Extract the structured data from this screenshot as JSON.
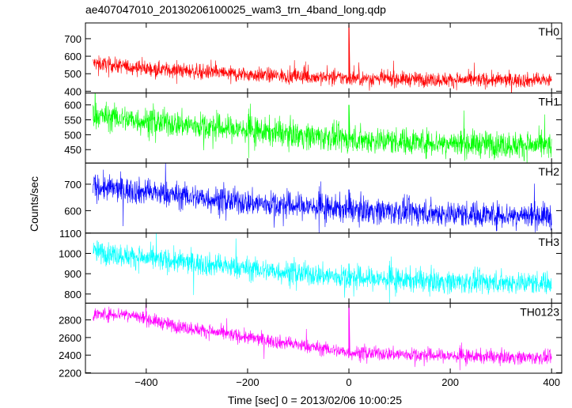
{
  "chart_data": {
    "type": "line",
    "title": "ae407047010_20130206100025_wam3_trn_4band_long.qdp",
    "xlabel": "Time [sec] 0 = 2013/02/06 10:00:25",
    "ylabel": "Counts/sec",
    "xlim": [
      -520,
      420
    ],
    "x_ticks": [
      -400,
      -200,
      0,
      200,
      400
    ],
    "x_tick_labels": [
      "−400",
      "−200",
      "0",
      "200",
      "400"
    ],
    "x_sample_range": [
      -505,
      400
    ],
    "grid": false,
    "panels": [
      {
        "label": "TH0",
        "color": "#ff0000",
        "ylim": [
          390,
          790
        ],
        "y_ticks": [
          400,
          500,
          600,
          700
        ],
        "trend": [
          [
            -505,
            560
          ],
          [
            -400,
            530
          ],
          [
            -200,
            495
          ],
          [
            0,
            475
          ],
          [
            200,
            465
          ],
          [
            400,
            462
          ]
        ],
        "noise": 30,
        "spike": {
          "x": 0,
          "peak": 780
        }
      },
      {
        "label": "TH1",
        "color": "#00ff00",
        "ylim": [
          405,
          640
        ],
        "y_ticks": [
          450,
          500,
          550,
          600
        ],
        "trend": [
          [
            -505,
            565
          ],
          [
            -400,
            545
          ],
          [
            -200,
            515
          ],
          [
            0,
            485
          ],
          [
            200,
            472
          ],
          [
            400,
            462
          ]
        ],
        "noise": 32,
        "spike": {
          "x": 0,
          "peak": 600
        }
      },
      {
        "label": "TH2",
        "color": "#0000ff",
        "ylim": [
          515,
          780
        ],
        "y_ticks": [
          600,
          700
        ],
        "trend": [
          [
            -505,
            690
          ],
          [
            -400,
            670
          ],
          [
            -200,
            630
          ],
          [
            0,
            605
          ],
          [
            200,
            588
          ],
          [
            400,
            580
          ]
        ],
        "noise": 35,
        "spike": {
          "x": 0,
          "peak": 680
        }
      },
      {
        "label": "TH3",
        "color": "#00ffff",
        "ylim": [
          755,
          1100
        ],
        "y_ticks": [
          800,
          900,
          1000,
          1100
        ],
        "trend": [
          [
            -505,
            1010
          ],
          [
            -400,
            975
          ],
          [
            -200,
            925
          ],
          [
            0,
            880
          ],
          [
            200,
            860
          ],
          [
            400,
            855
          ]
        ],
        "noise": 40,
        "spike": {
          "x": 0,
          "peak": 950
        }
      },
      {
        "label": "TH0123",
        "color": "#ff00ff",
        "ylim": [
          2195,
          2990
        ],
        "y_ticks": [
          2200,
          2400,
          2600,
          2800
        ],
        "trend": [
          [
            -505,
            2860
          ],
          [
            -440,
            2870
          ],
          [
            -350,
            2740
          ],
          [
            -200,
            2600
          ],
          [
            0,
            2430
          ],
          [
            200,
            2390
          ],
          [
            400,
            2370
          ]
        ],
        "noise": 55,
        "spike": {
          "x": 0,
          "peak": 2980
        }
      }
    ]
  }
}
